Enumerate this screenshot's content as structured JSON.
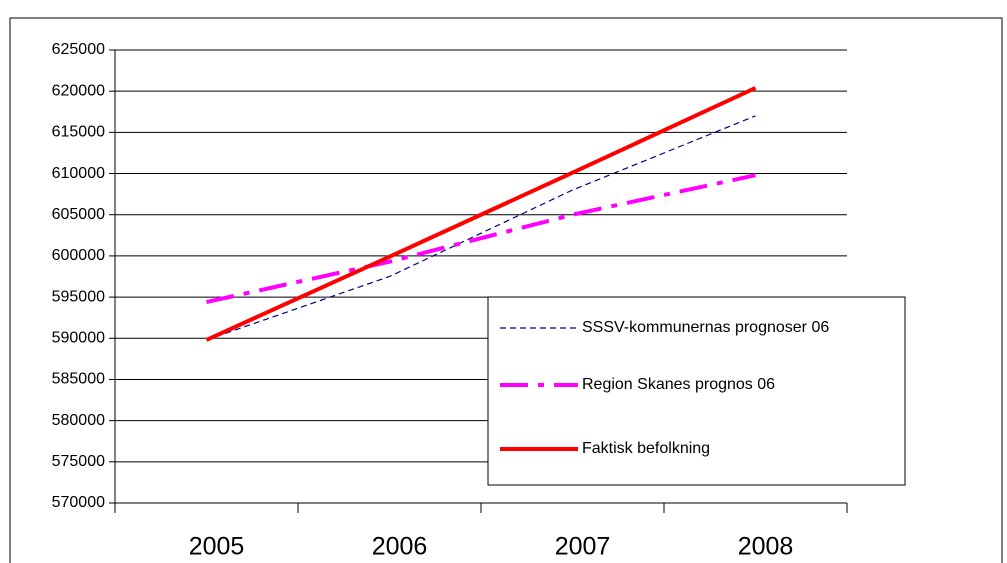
{
  "chart_data": {
    "type": "line",
    "categories": [
      "2005",
      "2006",
      "2007",
      "2008"
    ],
    "series": [
      {
        "name": "SSSV-kommunernas prognoser 06",
        "color": "#000080",
        "dash": "6,4",
        "width": 1.2,
        "values": [
          589800,
          597500,
          608000,
          617000
        ]
      },
      {
        "name": "Region Skanes prognos 06",
        "color": "#ff00ff",
        "dash": "28,10,6,10",
        "width": 4,
        "values": [
          594400,
          599300,
          605000,
          609800
        ]
      },
      {
        "name": "Faktisk befolkning",
        "color": "#ff0000",
        "dash": "none",
        "width": 4,
        "values": [
          589800,
          599900,
          610100,
          620400
        ]
      }
    ],
    "ylim": [
      570000,
      625000
    ],
    "yticks": [
      570000,
      575000,
      580000,
      585000,
      590000,
      595000,
      600000,
      605000,
      610000,
      615000,
      620000,
      625000
    ],
    "grid": true
  }
}
